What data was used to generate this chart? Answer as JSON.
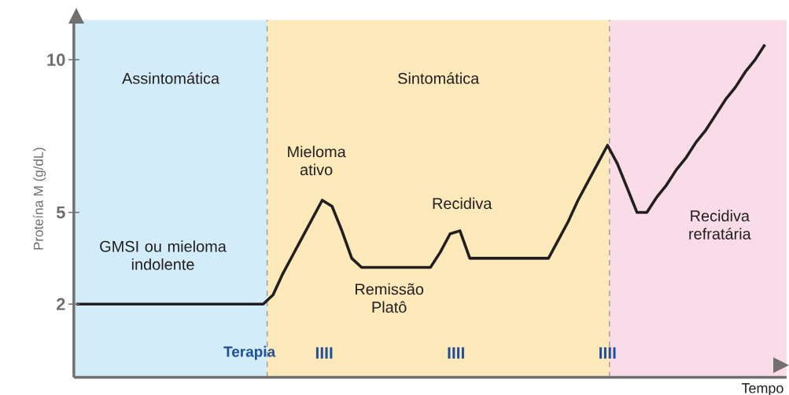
{
  "chart_data": {
    "type": "line",
    "xlabel": "Tempo",
    "ylabel": "Proteína M (g/dL)",
    "categories": [
      null,
      null,
      null,
      null,
      null,
      null,
      null,
      null,
      null,
      null,
      null,
      null,
      null,
      null,
      null,
      null,
      null,
      null,
      null,
      null,
      null,
      null,
      null,
      null,
      null,
      null,
      null,
      null,
      null,
      null,
      null,
      null,
      null,
      null,
      null,
      null,
      null,
      null,
      null,
      null,
      null,
      null,
      null,
      null,
      null,
      null,
      null,
      null,
      null,
      null,
      null,
      null,
      null,
      null,
      null,
      null,
      null,
      null,
      null,
      null,
      null,
      null,
      null,
      null,
      null,
      null,
      null,
      null,
      null,
      null,
      null
    ],
    "series": [
      {
        "color": "#231f20",
        "values": [
          2,
          2,
          2,
          2,
          2,
          2,
          2,
          2,
          2,
          2,
          2,
          2,
          2,
          2,
          2,
          2,
          2,
          2,
          2,
          2,
          2.3,
          3.0,
          3.6,
          4.2,
          4.8,
          5.4,
          5.2,
          4.4,
          3.5,
          3.2,
          3.2,
          3.2,
          3.2,
          3.2,
          3.2,
          3.2,
          3.2,
          3.7,
          4.3,
          4.4,
          3.5,
          3.5,
          3.5,
          3.5,
          3.5,
          3.5,
          3.5,
          3.5,
          3.5,
          4.1,
          4.7,
          5.4,
          6.0,
          6.6,
          7.2,
          6.6,
          5.8,
          5.0,
          5.0,
          5.5,
          5.9,
          6.4,
          6.8,
          7.3,
          7.7,
          8.2,
          8.7,
          9.1,
          9.6,
          10.0,
          10.5
        ]
      }
    ],
    "ylim": [
      -0.4,
      11.3
    ],
    "yticks": [
      2,
      5,
      10
    ],
    "annotations": [
      "Assintomática",
      "Sintomática",
      "GMSI ou mieloma indolente",
      "Mieloma ativo",
      "Remissão Platô",
      "Recidiva",
      "Recidiva refratária",
      "Terapia",
      "IIII",
      "IIII",
      "IIII"
    ]
  }
}
